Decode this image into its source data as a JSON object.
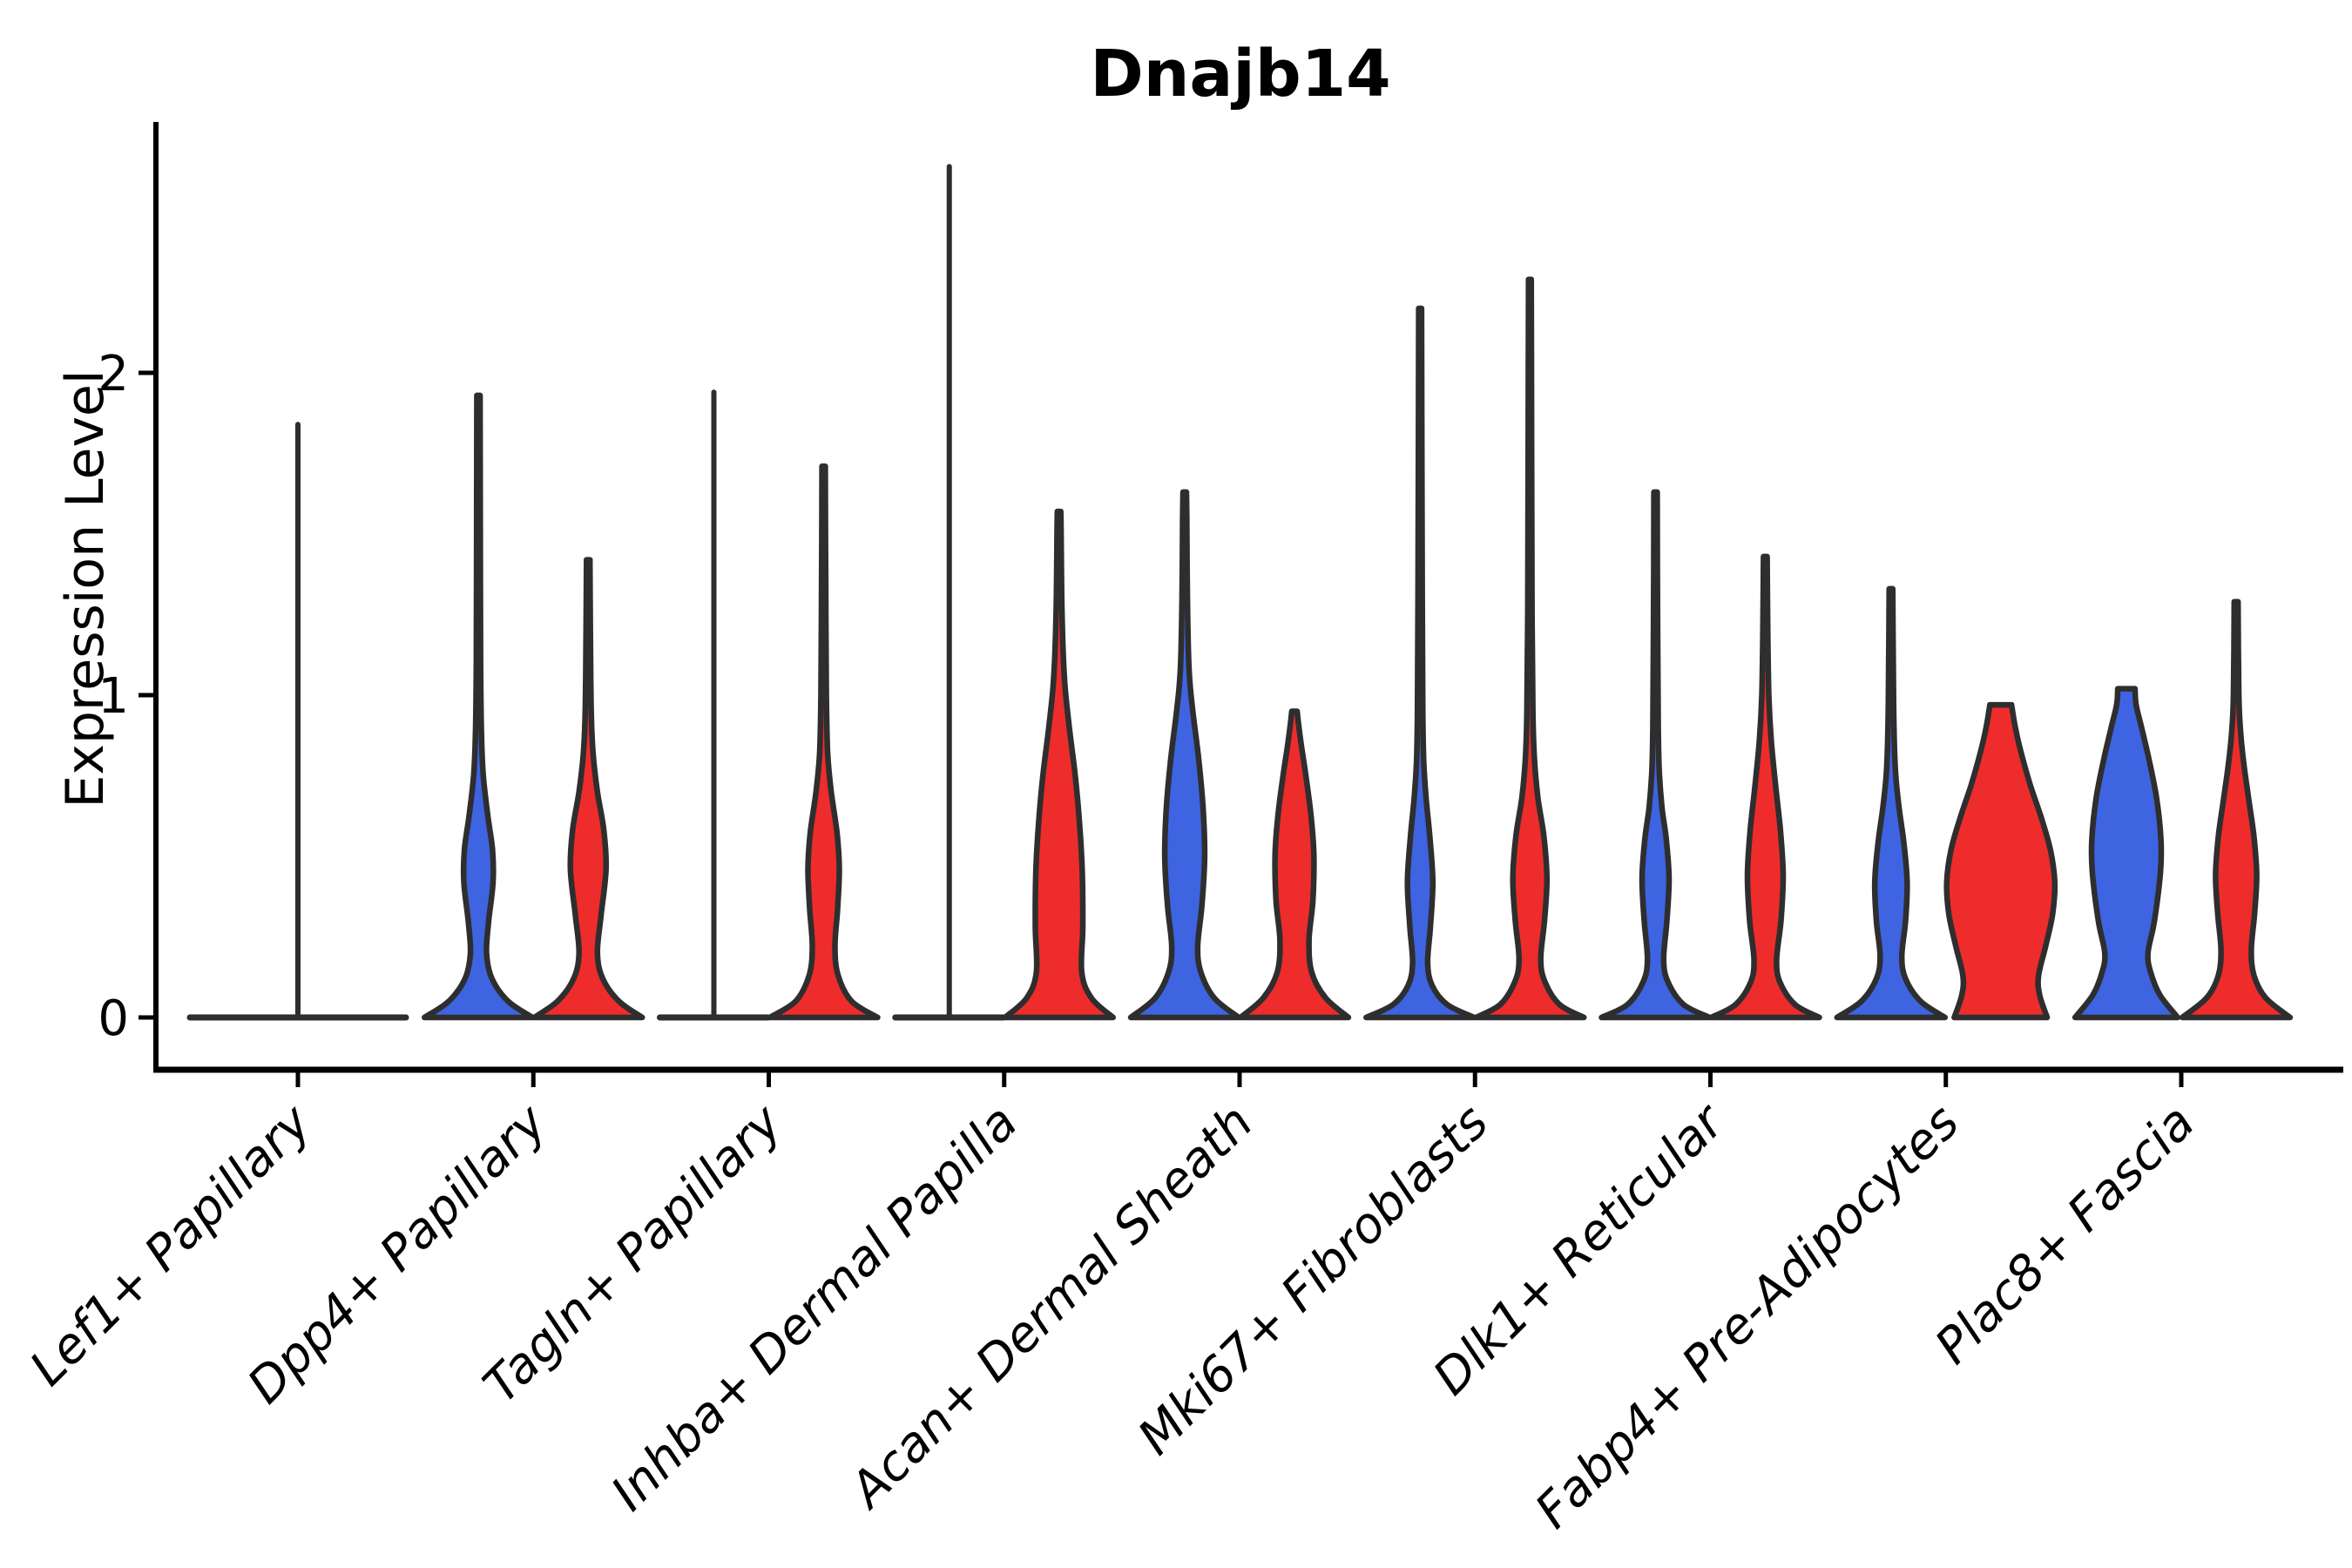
{
  "chart_data": {
    "type": "violin",
    "title": "Dnajb14",
    "ylabel": "Expression Level",
    "xlabel": "",
    "yticks": [
      0,
      1,
      2
    ],
    "ylim": [
      -0.16,
      2.76
    ],
    "grid": false,
    "legend": null,
    "colors": {
      "group_blue": "#3E64E1",
      "group_red": "#EE2C2C",
      "outline": "#2E2E2E",
      "axis": "#000000"
    },
    "categories": [
      "Lef1+ Papillary",
      "Dpp4+ Papillary",
      "Tagln+ Papillary",
      "Inhba+ Dermal Papilla",
      "Acan+ Dermal Sheath",
      "Mki67+ Fibroblasts",
      "Dlk1+ Reticular",
      "Fabp4+ Pre-Adipocytes",
      "Plac8+ Fascia"
    ],
    "groups": [
      {
        "label": "Lef1+ Papillary",
        "violins": [
          {
            "series": "merged",
            "color": "outline",
            "type": "collapsed",
            "wide": true,
            "max_expression": 1.84
          }
        ]
      },
      {
        "label": "Dpp4+ Papillary",
        "violins": [
          {
            "series": "blue",
            "color": "group_blue",
            "type": "density",
            "max_expression": 1.93,
            "profile": [
              [
                0,
                1
              ],
              [
                0.05,
                0.55
              ],
              [
                0.12,
                0.25
              ],
              [
                0.2,
                0.15
              ],
              [
                0.3,
                0.19
              ],
              [
                0.42,
                0.27
              ],
              [
                0.52,
                0.26
              ],
              [
                0.63,
                0.17
              ],
              [
                0.75,
                0.09
              ],
              [
                0.88,
                0.055
              ],
              [
                1.1,
                0.04
              ],
              [
                1.6,
                0.033
              ],
              [
                1.93,
                0.03
              ]
            ]
          },
          {
            "series": "red",
            "color": "group_red",
            "type": "density",
            "max_expression": 1.42,
            "profile": [
              [
                0,
                1
              ],
              [
                0.05,
                0.57
              ],
              [
                0.12,
                0.27
              ],
              [
                0.2,
                0.17
              ],
              [
                0.32,
                0.24
              ],
              [
                0.46,
                0.33
              ],
              [
                0.58,
                0.29
              ],
              [
                0.7,
                0.17
              ],
              [
                0.82,
                0.09
              ],
              [
                0.95,
                0.055
              ],
              [
                1.2,
                0.04
              ],
              [
                1.42,
                0.032
              ]
            ]
          }
        ]
      },
      {
        "label": "Tagln+ Papillary",
        "violins": [
          {
            "series": "blue",
            "color": "group_blue",
            "type": "collapsed",
            "max_expression": 1.94
          },
          {
            "series": "red",
            "color": "group_red",
            "type": "density",
            "max_expression": 1.71,
            "profile": [
              [
                0,
                1
              ],
              [
                0.05,
                0.52
              ],
              [
                0.13,
                0.27
              ],
              [
                0.22,
                0.21
              ],
              [
                0.34,
                0.26
              ],
              [
                0.46,
                0.29
              ],
              [
                0.57,
                0.25
              ],
              [
                0.7,
                0.14
              ],
              [
                0.82,
                0.075
              ],
              [
                1.0,
                0.05
              ],
              [
                1.35,
                0.038
              ],
              [
                1.71,
                0.03
              ]
            ]
          }
        ]
      },
      {
        "label": "Inhba+ Dermal Papilla",
        "violins": [
          {
            "series": "blue",
            "color": "group_blue",
            "type": "collapsed",
            "max_expression": 2.64
          },
          {
            "series": "red",
            "color": "group_red",
            "type": "density",
            "max_expression": 1.57,
            "profile": [
              [
                0,
                1
              ],
              [
                0.06,
                0.6
              ],
              [
                0.14,
                0.42
              ],
              [
                0.28,
                0.44
              ],
              [
                0.45,
                0.43
              ],
              [
                0.6,
                0.38
              ],
              [
                0.75,
                0.3
              ],
              [
                0.9,
                0.19
              ],
              [
                1.05,
                0.1
              ],
              [
                1.25,
                0.055
              ],
              [
                1.5,
                0.038
              ],
              [
                1.57,
                0.032
              ]
            ]
          }
        ]
      },
      {
        "label": "Acan+ Dermal Sheath",
        "violins": [
          {
            "series": "blue",
            "color": "group_blue",
            "type": "density",
            "max_expression": 1.63,
            "profile": [
              [
                0,
                1
              ],
              [
                0.06,
                0.55
              ],
              [
                0.14,
                0.3
              ],
              [
                0.22,
                0.24
              ],
              [
                0.35,
                0.32
              ],
              [
                0.5,
                0.37
              ],
              [
                0.65,
                0.34
              ],
              [
                0.8,
                0.26
              ],
              [
                0.95,
                0.15
              ],
              [
                1.08,
                0.08
              ],
              [
                1.3,
                0.05
              ],
              [
                1.55,
                0.038
              ],
              [
                1.63,
                0.032
              ]
            ]
          },
          {
            "series": "red",
            "color": "group_red",
            "type": "density",
            "max_expression": 0.95,
            "profile": [
              [
                0,
                1
              ],
              [
                0.06,
                0.58
              ],
              [
                0.14,
                0.32
              ],
              [
                0.24,
                0.27
              ],
              [
                0.36,
                0.34
              ],
              [
                0.5,
                0.36
              ],
              [
                0.62,
                0.31
              ],
              [
                0.74,
                0.22
              ],
              [
                0.84,
                0.13
              ],
              [
                0.91,
                0.075
              ],
              [
                0.95,
                0.05
              ]
            ]
          }
        ]
      },
      {
        "label": "Mki67+ Fibroblasts",
        "violins": [
          {
            "series": "blue",
            "color": "group_blue",
            "type": "density",
            "max_expression": 2.2,
            "profile": [
              [
                0,
                1
              ],
              [
                0.04,
                0.5
              ],
              [
                0.1,
                0.22
              ],
              [
                0.17,
                0.14
              ],
              [
                0.28,
                0.19
              ],
              [
                0.42,
                0.235
              ],
              [
                0.56,
                0.18
              ],
              [
                0.68,
                0.11
              ],
              [
                0.8,
                0.065
              ],
              [
                0.95,
                0.05
              ],
              [
                1.3,
                0.04
              ],
              [
                1.8,
                0.032
              ],
              [
                2.2,
                0.026
              ]
            ]
          },
          {
            "series": "red",
            "color": "group_red",
            "type": "density",
            "max_expression": 2.29,
            "profile": [
              [
                0,
                1
              ],
              [
                0.04,
                0.55
              ],
              [
                0.11,
                0.28
              ],
              [
                0.18,
                0.2
              ],
              [
                0.3,
                0.27
              ],
              [
                0.43,
                0.315
              ],
              [
                0.56,
                0.26
              ],
              [
                0.68,
                0.15
              ],
              [
                0.8,
                0.085
              ],
              [
                0.95,
                0.055
              ],
              [
                1.25,
                0.04
              ],
              [
                1.8,
                0.032
              ],
              [
                2.29,
                0.025
              ]
            ]
          }
        ]
      },
      {
        "label": "Dlk1+ Reticular",
        "violins": [
          {
            "series": "blue",
            "color": "group_blue",
            "type": "density",
            "max_expression": 1.63,
            "profile": [
              [
                0,
                1
              ],
              [
                0.04,
                0.52
              ],
              [
                0.11,
                0.23
              ],
              [
                0.18,
                0.15
              ],
              [
                0.3,
                0.21
              ],
              [
                0.43,
                0.25
              ],
              [
                0.55,
                0.2
              ],
              [
                0.65,
                0.12
              ],
              [
                0.76,
                0.07
              ],
              [
                0.9,
                0.05
              ],
              [
                1.2,
                0.038
              ],
              [
                1.63,
                0.03
              ]
            ]
          },
          {
            "series": "red",
            "color": "group_red",
            "type": "density",
            "max_expression": 1.43,
            "profile": [
              [
                0,
                1
              ],
              [
                0.04,
                0.55
              ],
              [
                0.11,
                0.27
              ],
              [
                0.18,
                0.21
              ],
              [
                0.3,
                0.29
              ],
              [
                0.44,
                0.33
              ],
              [
                0.58,
                0.28
              ],
              [
                0.72,
                0.19
              ],
              [
                0.86,
                0.11
              ],
              [
                1.0,
                0.065
              ],
              [
                1.2,
                0.045
              ],
              [
                1.43,
                0.034
              ]
            ]
          }
        ]
      },
      {
        "label": "Fabp4+ Pre-Adipocytes",
        "violins": [
          {
            "series": "blue",
            "color": "group_blue",
            "type": "density",
            "max_expression": 1.33,
            "profile": [
              [
                0,
                1
              ],
              [
                0.05,
                0.55
              ],
              [
                0.12,
                0.27
              ],
              [
                0.19,
                0.2
              ],
              [
                0.3,
                0.27
              ],
              [
                0.42,
                0.3
              ],
              [
                0.54,
                0.24
              ],
              [
                0.65,
                0.15
              ],
              [
                0.76,
                0.085
              ],
              [
                0.9,
                0.055
              ],
              [
                1.1,
                0.042
              ],
              [
                1.33,
                0.033
              ]
            ]
          },
          {
            "series": "red",
            "color": "group_red",
            "type": "density",
            "flat_top": true,
            "max_expression": 0.97,
            "profile": [
              [
                0,
                0.86
              ],
              [
                0.07,
                0.72
              ],
              [
                0.13,
                0.7
              ],
              [
                0.22,
                0.83
              ],
              [
                0.32,
                0.96
              ],
              [
                0.42,
                1.0
              ],
              [
                0.52,
                0.92
              ],
              [
                0.62,
                0.75
              ],
              [
                0.72,
                0.55
              ],
              [
                0.82,
                0.38
              ],
              [
                0.9,
                0.27
              ],
              [
                0.97,
                0.2
              ]
            ]
          }
        ]
      },
      {
        "label": "Plac8+ Fascia",
        "violins": [
          {
            "series": "blue",
            "color": "group_blue",
            "type": "density",
            "flat_top": true,
            "max_expression": 1.02,
            "profile": [
              [
                0,
                0.95
              ],
              [
                0.07,
                0.62
              ],
              [
                0.14,
                0.45
              ],
              [
                0.2,
                0.4
              ],
              [
                0.3,
                0.52
              ],
              [
                0.45,
                0.63
              ],
              [
                0.55,
                0.64
              ],
              [
                0.68,
                0.56
              ],
              [
                0.8,
                0.42
              ],
              [
                0.9,
                0.28
              ],
              [
                0.97,
                0.18
              ],
              [
                1.02,
                0.16
              ]
            ]
          },
          {
            "series": "red",
            "color": "group_red",
            "type": "density",
            "max_expression": 1.29,
            "profile": [
              [
                0,
                1
              ],
              [
                0.06,
                0.55
              ],
              [
                0.13,
                0.33
              ],
              [
                0.21,
                0.28
              ],
              [
                0.32,
                0.34
              ],
              [
                0.44,
                0.38
              ],
              [
                0.56,
                0.33
              ],
              [
                0.68,
                0.23
              ],
              [
                0.79,
                0.14
              ],
              [
                0.89,
                0.08
              ],
              [
                1.0,
                0.05
              ],
              [
                1.29,
                0.035
              ]
            ]
          }
        ]
      }
    ]
  }
}
